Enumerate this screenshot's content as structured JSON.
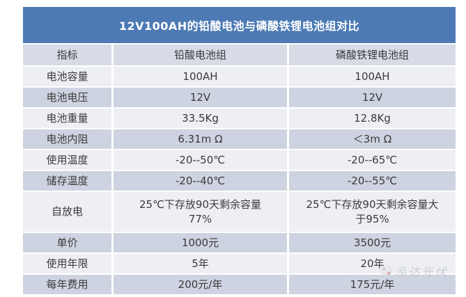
{
  "title": "12V100AH的铅酸电池与磷酸铁锂电池组对比",
  "colors": {
    "title_bar": "#4d7ab4",
    "title_text": "#ffffff",
    "header_row": "#d7dbe6",
    "row_dark": "#cdd3e0",
    "row_light": "#edeff4",
    "text": "#3a3a3a"
  },
  "table": {
    "columns": [
      "指标",
      "铅酸电池组",
      "磷酸铁锂电池组"
    ],
    "rows": [
      {
        "label": "电池容量",
        "lead_acid": "100AH",
        "lifepo4": "100AH"
      },
      {
        "label": "电池电压",
        "lead_acid": "12V",
        "lifepo4": "12V"
      },
      {
        "label": "电池重量",
        "lead_acid": "33.5Kg",
        "lifepo4": "12.8Kg"
      },
      {
        "label": "电池内阻",
        "lead_acid": "6.31m Ω",
        "lifepo4": "＜3m Ω"
      },
      {
        "label": "使用温度",
        "lead_acid": "-20--50℃",
        "lifepo4": "-20--65℃"
      },
      {
        "label": "储存温度",
        "lead_acid": "-20--40℃",
        "lifepo4": "-20--55℃"
      },
      {
        "label": "自放电",
        "lead_acid": "25℃下存放90天剩余容量\n77%",
        "lifepo4": "25℃下存放90天剩余容量大\n于95%"
      },
      {
        "label": "单价",
        "lead_acid": "1000元",
        "lifepo4": "3500元"
      },
      {
        "label": "使用年限",
        "lead_acid": "5年",
        "lifepo4": "20年"
      },
      {
        "label": "每年费用",
        "lead_acid": "200元/年",
        "lifepo4": "175元/年"
      }
    ]
  },
  "watermark": {
    "text": "泓达光伏"
  }
}
